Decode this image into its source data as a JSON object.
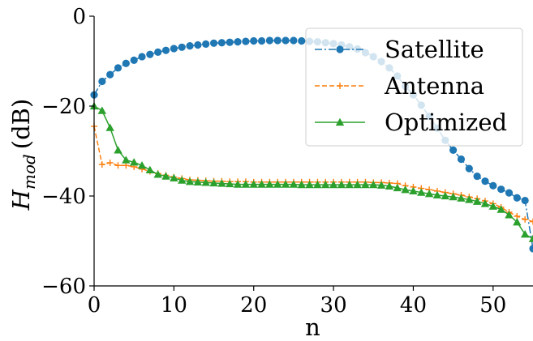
{
  "chart_data": {
    "type": "line",
    "title": "",
    "xlabel": "n",
    "ylabel_main": "H",
    "ylabel_sub": "mod",
    "ylabel_unit": "(dB)",
    "xlim": [
      0,
      55
    ],
    "ylim": [
      -60,
      0
    ],
    "xticks": [
      0,
      10,
      20,
      30,
      40,
      50
    ],
    "yticks": [
      -60,
      -40,
      -20,
      0
    ],
    "ytick_labels": [
      "−60",
      "−40",
      "−20",
      "0"
    ],
    "grid": false,
    "legend_position": "upper right",
    "x": [
      0,
      1,
      2,
      3,
      4,
      5,
      6,
      7,
      8,
      9,
      10,
      11,
      12,
      13,
      14,
      15,
      16,
      17,
      18,
      19,
      20,
      21,
      22,
      23,
      24,
      25,
      26,
      27,
      28,
      29,
      30,
      31,
      32,
      33,
      34,
      35,
      36,
      37,
      38,
      39,
      40,
      41,
      42,
      43,
      44,
      45,
      46,
      47,
      48,
      49,
      50,
      51,
      52,
      53,
      54,
      55
    ],
    "series": [
      {
        "name": "Satellite",
        "color": "#1f77b4",
        "line_style": "dash-dot",
        "marker": "circle",
        "values": [
          -17.5,
          -14.5,
          -13.0,
          -11.5,
          -10.5,
          -9.8,
          -9.0,
          -8.5,
          -8.0,
          -7.6,
          -7.2,
          -6.9,
          -6.6,
          -6.4,
          -6.2,
          -6.0,
          -5.9,
          -5.8,
          -5.7,
          -5.6,
          -5.5,
          -5.5,
          -5.4,
          -5.4,
          -5.4,
          -5.4,
          -5.5,
          -5.6,
          -5.7,
          -5.9,
          -6.1,
          -6.4,
          -6.8,
          -7.3,
          -8.1,
          -9.0,
          -10.1,
          -11.5,
          -13.3,
          -15.6,
          -17.5,
          -19.8,
          -22.3,
          -24.9,
          -27.6,
          -29.8,
          -31.8,
          -33.9,
          -35.6,
          -36.7,
          -37.7,
          -38.5,
          -39.3,
          -40.4,
          -41.0,
          -51.7
        ]
      },
      {
        "name": "Antenna",
        "color": "#ff7f0e",
        "line_style": "dashed",
        "marker": "plus",
        "values": [
          -24.5,
          -33.0,
          -32.6,
          -33.2,
          -33.2,
          -33.5,
          -34.0,
          -34.5,
          -35.0,
          -35.4,
          -35.8,
          -36.1,
          -36.4,
          -36.5,
          -36.6,
          -36.7,
          -36.7,
          -36.8,
          -36.8,
          -36.8,
          -36.9,
          -36.9,
          -36.9,
          -36.9,
          -36.9,
          -36.9,
          -36.9,
          -36.9,
          -36.9,
          -36.9,
          -36.9,
          -36.9,
          -36.9,
          -36.9,
          -36.9,
          -37.0,
          -37.0,
          -37.1,
          -37.2,
          -37.7,
          -38.0,
          -38.3,
          -38.6,
          -38.9,
          -39.2,
          -39.5,
          -39.8,
          -40.2,
          -40.6,
          -41.1,
          -41.7,
          -42.5,
          -43.6,
          -44.5,
          -45.2,
          -45.7
        ]
      },
      {
        "name": "Optimized",
        "color": "#2ca02c",
        "line_style": "solid",
        "marker": "triangle",
        "values": [
          -20.0,
          -21.0,
          -24.8,
          -29.8,
          -32.0,
          -32.5,
          -33.2,
          -34.2,
          -35.2,
          -35.6,
          -36.0,
          -36.5,
          -36.8,
          -36.9,
          -37.0,
          -37.1,
          -37.2,
          -37.3,
          -37.4,
          -37.4,
          -37.4,
          -37.4,
          -37.4,
          -37.4,
          -37.4,
          -37.4,
          -37.5,
          -37.5,
          -37.5,
          -37.5,
          -37.5,
          -37.5,
          -37.5,
          -37.5,
          -37.5,
          -37.5,
          -37.6,
          -37.8,
          -38.2,
          -38.6,
          -38.9,
          -39.2,
          -39.5,
          -39.8,
          -40.0,
          -40.2,
          -40.5,
          -40.8,
          -41.2,
          -41.7,
          -42.3,
          -43.0,
          -44.2,
          -45.8,
          -48.5,
          -49.5
        ]
      }
    ]
  }
}
